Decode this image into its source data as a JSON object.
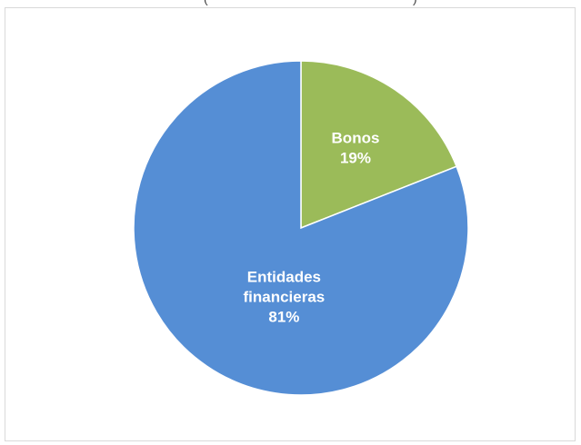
{
  "chart_data": {
    "type": "pie",
    "title": "",
    "start_angle_deg": 0,
    "direction": "clockwise",
    "legend": "none",
    "slices": [
      {
        "name": "Bonos",
        "value": 19,
        "label_lines": [
          "Bonos",
          "19%"
        ],
        "color": "#9bbb59"
      },
      {
        "name": "Entidades financieras",
        "value": 81,
        "label_lines": [
          "Entidades",
          "financieras",
          "81%"
        ],
        "color": "#558ed5"
      }
    ]
  },
  "title_fragment": {
    "open": "(",
    "close": ")"
  }
}
